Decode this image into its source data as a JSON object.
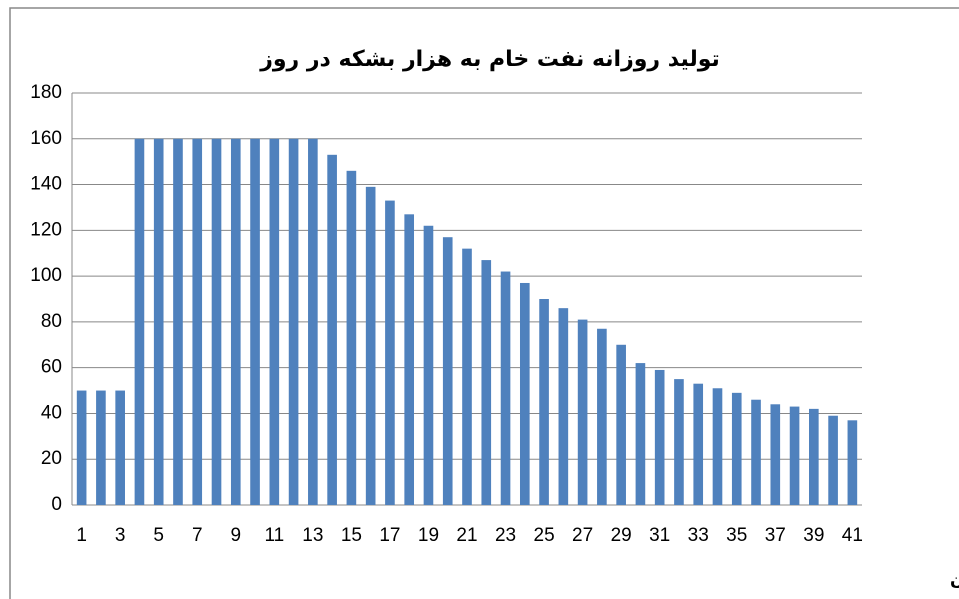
{
  "chart_data": {
    "type": "bar",
    "title": "تولید روزانه نفت خام به هزار بشکه در روز",
    "x_label": "دوره بهره برداری از میدان",
    "categories": [
      "1",
      null,
      "3",
      null,
      "5",
      null,
      "7",
      null,
      "9",
      null,
      "11",
      null,
      "13",
      null,
      "15",
      null,
      "17",
      null,
      "19",
      null,
      "21",
      null,
      "23",
      null,
      "25",
      null,
      "27",
      null,
      "29",
      null,
      "31",
      null,
      "33",
      null,
      "35",
      null,
      "37",
      null,
      "39",
      null,
      "41"
    ],
    "values": [
      50,
      50,
      50,
      160,
      160,
      160,
      160,
      160,
      160,
      160,
      160,
      160,
      160,
      153,
      146,
      139,
      133,
      127,
      122,
      117,
      112,
      107,
      102,
      97,
      90,
      86,
      81,
      77,
      70,
      62,
      59,
      55,
      53,
      51,
      49,
      46,
      44,
      43,
      42,
      39,
      37
    ],
    "color": "#4f81bd",
    "ylim": [
      0,
      180
    ],
    "yticks": [
      0,
      20,
      40,
      60,
      80,
      100,
      120,
      140,
      160,
      180
    ],
    "grid": true
  }
}
